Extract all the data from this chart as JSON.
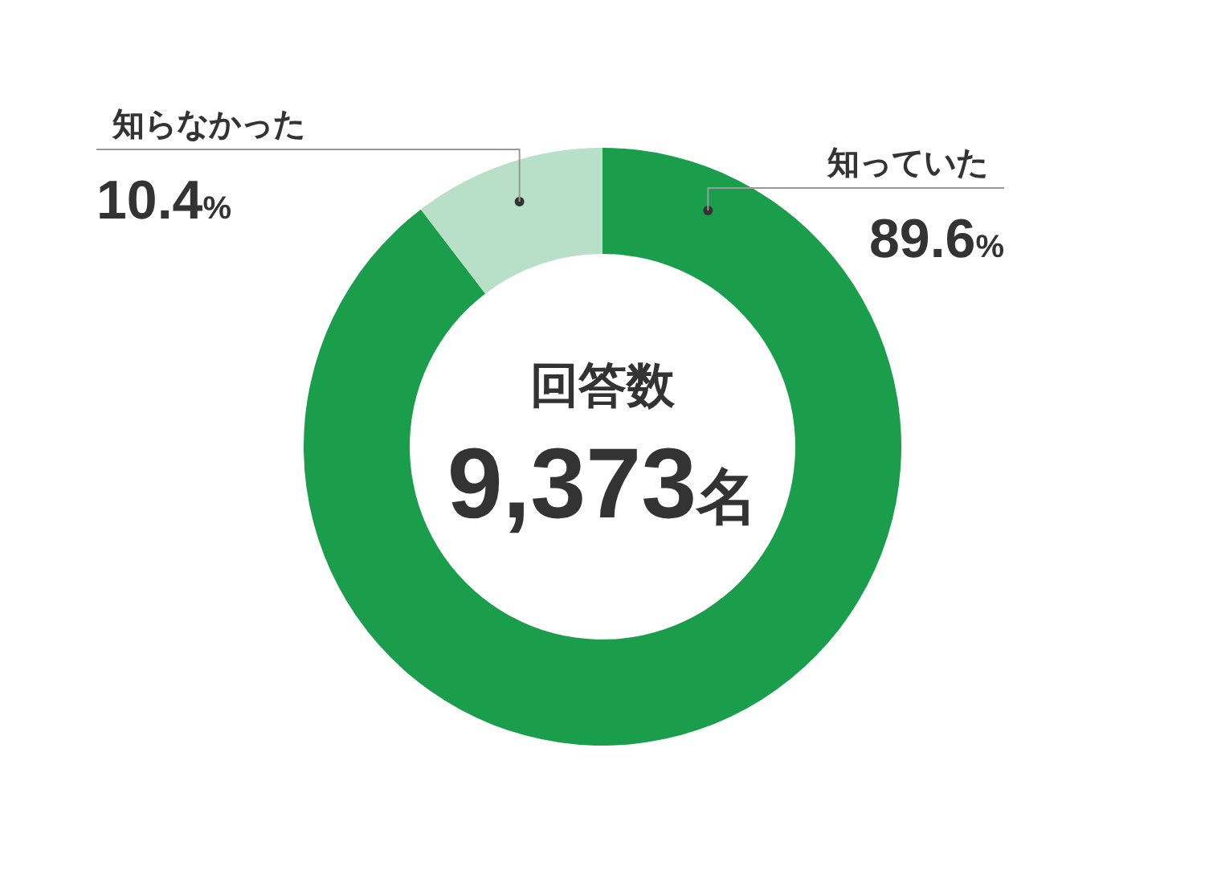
{
  "chart_data": {
    "type": "donut",
    "categories": [
      "知っていた",
      "知らなかった"
    ],
    "values": [
      89.6,
      10.4
    ],
    "colors": [
      "#1a9e4b",
      "#b8e0c9"
    ],
    "value_labels": [
      "89.6%",
      "10.4%"
    ],
    "annotations": [
      "回答数",
      "9,373名"
    ]
  }
}
